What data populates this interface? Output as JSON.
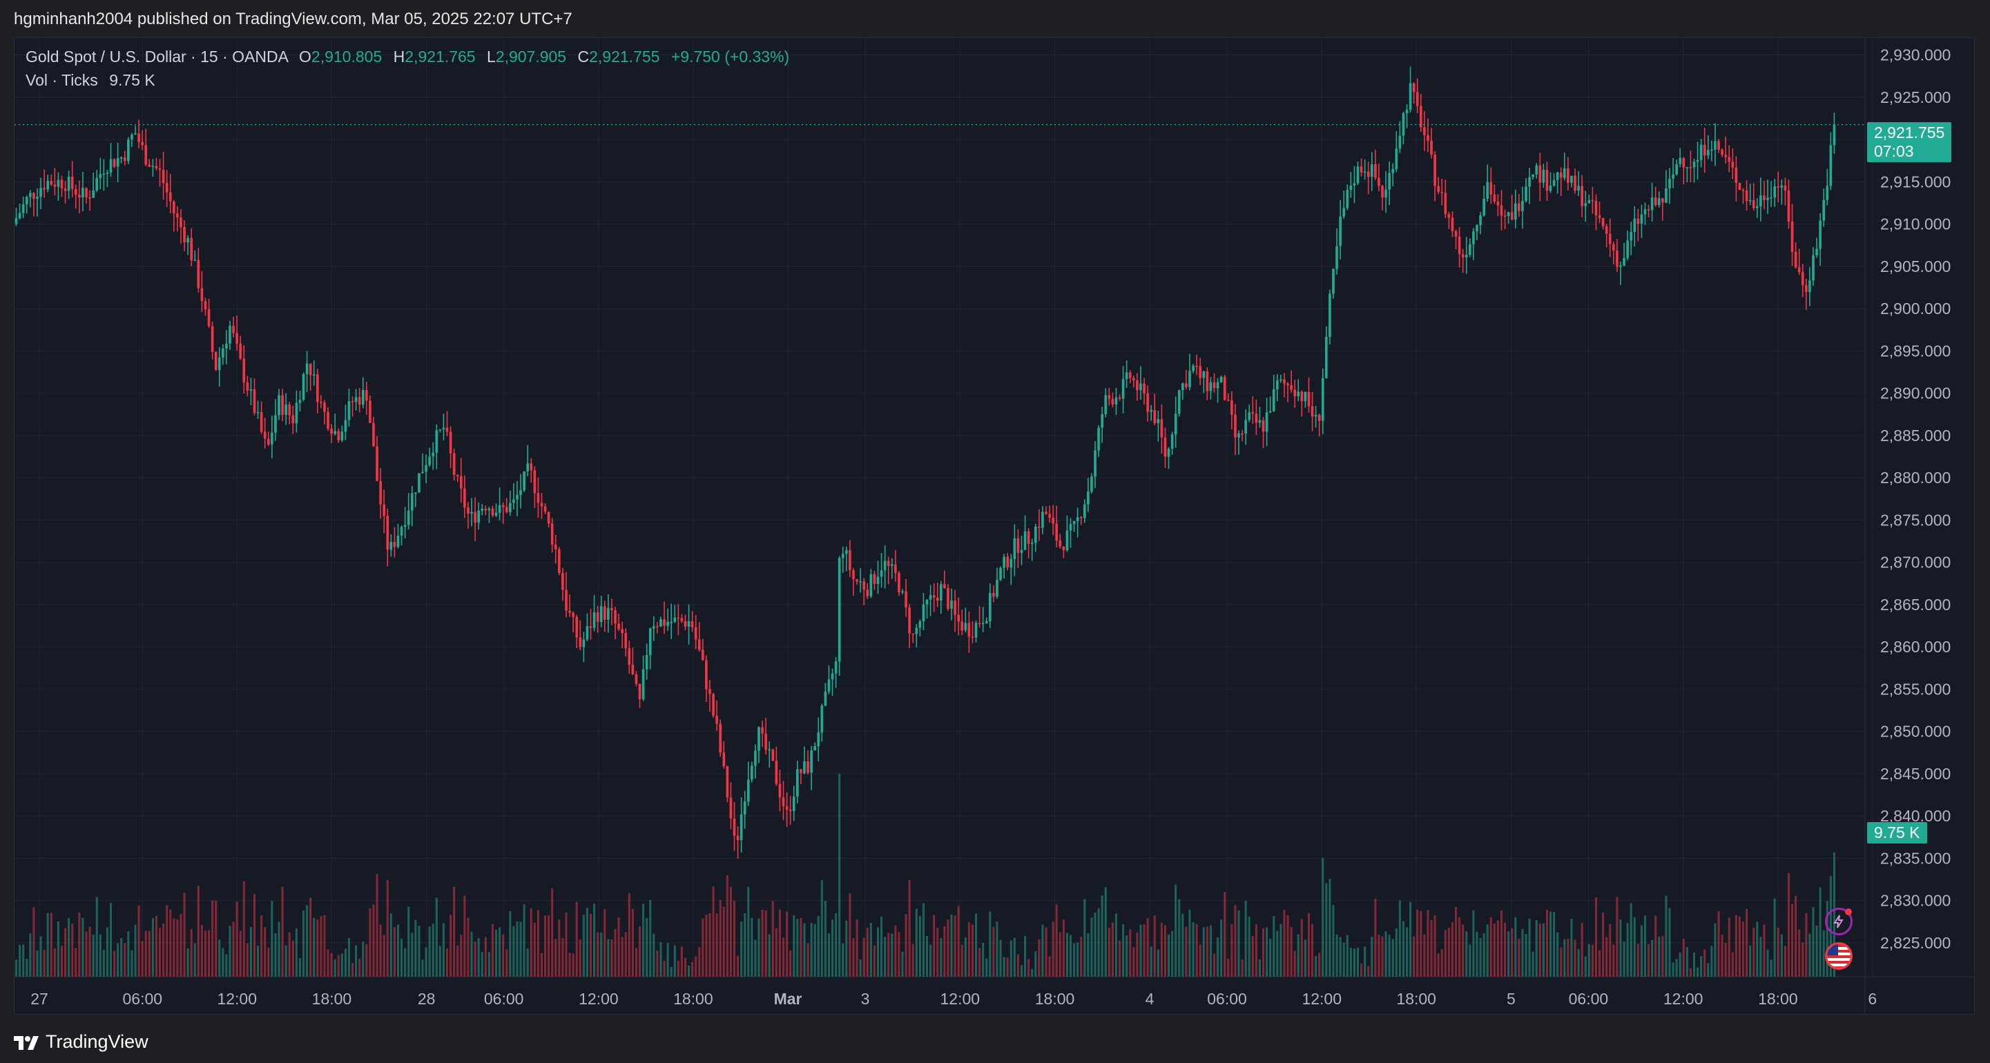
{
  "header": {
    "published": "hgminhanh2004 published on TradingView.com, Mar 05, 2025 22:07 UTC+7"
  },
  "legend": {
    "symbol": "Gold Spot / U.S. Dollar · 15 · OANDA",
    "o_label": "O",
    "o_value": "2,910.805",
    "h_label": "H",
    "h_value": "2,921.765",
    "l_label": "L",
    "l_value": "2,907.905",
    "c_label": "C",
    "c_value": "2,921.755",
    "change": "+9.750 (+0.33%)",
    "vol_label": "Vol · Ticks",
    "vol_value": "9.75 K"
  },
  "price_badge": {
    "price": "2,921.755",
    "countdown": "07:03"
  },
  "vol_badge": "9.75 K",
  "footer": {
    "brand": "TradingView"
  },
  "colors": {
    "up": "#22ab94",
    "down": "#f23645",
    "background": "#161a25",
    "grid": "#232735"
  },
  "icons": [
    "lightning-icon",
    "us-flag-icon"
  ],
  "chart_data": {
    "type": "candlestick",
    "interval": "15",
    "y_axis_labels": [
      "2,930.000",
      "2,925.000",
      "2,920.000",
      "2,915.000",
      "2,910.000",
      "2,905.000",
      "2,900.000",
      "2,895.000",
      "2,890.000",
      "2,885.000",
      "2,880.000",
      "2,875.000",
      "2,870.000",
      "2,865.000",
      "2,860.000",
      "2,855.000",
      "2,850.000",
      "2,845.000",
      "2,840.000",
      "2,835.000",
      "2,830.000",
      "2,825.000"
    ],
    "y_range": [
      2821,
      2932
    ],
    "x_axis_labels": [
      {
        "label": "27",
        "bold": false,
        "t": 0.0
      },
      {
        "label": "06:00",
        "bold": false,
        "t": 0.0557
      },
      {
        "label": "12:00",
        "bold": false,
        "t": 0.1068
      },
      {
        "label": "18:00",
        "bold": false,
        "t": 0.158
      },
      {
        "label": "28",
        "bold": false,
        "t": 0.2092
      },
      {
        "label": "06:00",
        "bold": false,
        "t": 0.251
      },
      {
        "label": "12:00",
        "bold": false,
        "t": 0.3022
      },
      {
        "label": "18:00",
        "bold": false,
        "t": 0.3533
      },
      {
        "label": "Mar",
        "bold": true,
        "t": 0.4045
      },
      {
        "label": "3",
        "bold": false,
        "t": 0.4463
      },
      {
        "label": "12:00",
        "bold": false,
        "t": 0.4975
      },
      {
        "label": "18:00",
        "bold": false,
        "t": 0.5487
      },
      {
        "label": "4",
        "bold": false,
        "t": 0.6
      },
      {
        "label": "06:00",
        "bold": false,
        "t": 0.6418
      },
      {
        "label": "12:00",
        "bold": false,
        "t": 0.693
      },
      {
        "label": "18:00",
        "bold": false,
        "t": 0.7441
      },
      {
        "label": "5",
        "bold": false,
        "t": 0.7953
      },
      {
        "label": "06:00",
        "bold": false,
        "t": 0.8371
      },
      {
        "label": "12:00",
        "bold": false,
        "t": 0.8883
      },
      {
        "label": "18:00",
        "bold": false,
        "t": 0.9395
      },
      {
        "label": "6",
        "bold": false,
        "t": 0.9906
      }
    ],
    "close_path": [
      [
        0.0,
        2910
      ],
      [
        0.008,
        2913
      ],
      [
        0.018,
        2915
      ],
      [
        0.028,
        2915
      ],
      [
        0.04,
        2913
      ],
      [
        0.05,
        2917
      ],
      [
        0.06,
        2918
      ],
      [
        0.066,
        2921
      ],
      [
        0.072,
        2918
      ],
      [
        0.08,
        2916
      ],
      [
        0.088,
        2911
      ],
      [
        0.095,
        2908
      ],
      [
        0.102,
        2902
      ],
      [
        0.11,
        2893
      ],
      [
        0.118,
        2898
      ],
      [
        0.124,
        2893
      ],
      [
        0.13,
        2889
      ],
      [
        0.138,
        2883
      ],
      [
        0.144,
        2889
      ],
      [
        0.152,
        2887
      ],
      [
        0.16,
        2894
      ],
      [
        0.168,
        2888
      ],
      [
        0.176,
        2885
      ],
      [
        0.184,
        2889
      ],
      [
        0.192,
        2890
      ],
      [
        0.198,
        2879
      ],
      [
        0.204,
        2871
      ],
      [
        0.212,
        2875
      ],
      [
        0.22,
        2880
      ],
      [
        0.228,
        2884
      ],
      [
        0.234,
        2886
      ],
      [
        0.24,
        2880
      ],
      [
        0.248,
        2875
      ],
      [
        0.256,
        2877
      ],
      [
        0.264,
        2876
      ],
      [
        0.272,
        2877
      ],
      [
        0.28,
        2881
      ],
      [
        0.288,
        2876
      ],
      [
        0.294,
        2872
      ],
      [
        0.3,
        2865
      ],
      [
        0.308,
        2860
      ],
      [
        0.316,
        2864
      ],
      [
        0.324,
        2864
      ],
      [
        0.332,
        2860
      ],
      [
        0.34,
        2853
      ],
      [
        0.346,
        2863
      ],
      [
        0.352,
        2863
      ],
      [
        0.36,
        2863
      ],
      [
        0.368,
        2863
      ],
      [
        0.374,
        2858
      ],
      [
        0.382,
        2850
      ],
      [
        0.388,
        2842
      ],
      [
        0.392,
        2836
      ],
      [
        0.398,
        2844
      ],
      [
        0.404,
        2850
      ],
      [
        0.412,
        2846
      ],
      [
        0.42,
        2840
      ],
      [
        0.426,
        2845
      ],
      [
        0.432,
        2846
      ],
      [
        0.44,
        2853
      ],
      [
        0.446,
        2858
      ],
      [
        0.448,
        2858
      ],
      [
        0.4485,
        2873
      ],
      [
        0.456,
        2868
      ],
      [
        0.464,
        2867
      ],
      [
        0.472,
        2870
      ],
      [
        0.48,
        2868
      ],
      [
        0.488,
        2861
      ],
      [
        0.496,
        2865
      ],
      [
        0.504,
        2867
      ],
      [
        0.512,
        2863
      ],
      [
        0.52,
        2862
      ],
      [
        0.528,
        2864
      ],
      [
        0.536,
        2869
      ],
      [
        0.544,
        2872
      ],
      [
        0.552,
        2873
      ],
      [
        0.56,
        2876
      ],
      [
        0.568,
        2872
      ],
      [
        0.576,
        2874
      ],
      [
        0.584,
        2879
      ],
      [
        0.592,
        2889
      ],
      [
        0.6,
        2890
      ],
      [
        0.606,
        2892
      ],
      [
        0.612,
        2890
      ],
      [
        0.62,
        2887
      ],
      [
        0.626,
        2882
      ],
      [
        0.632,
        2890
      ],
      [
        0.64,
        2893
      ],
      [
        0.648,
        2891
      ],
      [
        0.656,
        2891
      ],
      [
        0.664,
        2884
      ],
      [
        0.67,
        2887
      ],
      [
        0.678,
        2886
      ],
      [
        0.686,
        2891
      ],
      [
        0.694,
        2891
      ],
      [
        0.702,
        2889
      ],
      [
        0.708,
        2886
      ],
      [
        0.714,
        2900
      ],
      [
        0.72,
        2910
      ],
      [
        0.726,
        2915
      ],
      [
        0.732,
        2917
      ],
      [
        0.738,
        2916
      ],
      [
        0.744,
        2913
      ],
      [
        0.75,
        2919
      ],
      [
        0.758,
        2926
      ],
      [
        0.764,
        2922
      ],
      [
        0.772,
        2915
      ],
      [
        0.78,
        2910
      ],
      [
        0.786,
        2906
      ],
      [
        0.792,
        2909
      ],
      [
        0.8,
        2915
      ],
      [
        0.808,
        2910
      ],
      [
        0.816,
        2912
      ],
      [
        0.824,
        2917
      ],
      [
        0.832,
        2915
      ],
      [
        0.84,
        2916
      ],
      [
        0.848,
        2914
      ],
      [
        0.856,
        2912
      ],
      [
        0.864,
        2909
      ],
      [
        0.872,
        2905
      ],
      [
        0.88,
        2910
      ],
      [
        0.888,
        2912
      ],
      [
        0.896,
        2913
      ],
      [
        0.904,
        2918
      ],
      [
        0.912,
        2917
      ],
      [
        0.92,
        2920
      ],
      [
        0.928,
        2918
      ],
      [
        0.936,
        2915
      ],
      [
        0.944,
        2912
      ],
      [
        0.952,
        2914
      ],
      [
        0.96,
        2915
      ],
      [
        0.966,
        2906
      ],
      [
        0.972,
        2902
      ],
      [
        0.978,
        2907
      ],
      [
        0.984,
        2915
      ],
      [
        0.988,
        2921.755
      ]
    ],
    "volume_scale_k": [
      0,
      20
    ]
  }
}
